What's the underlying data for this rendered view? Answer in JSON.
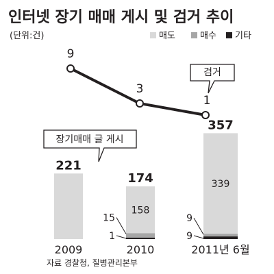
{
  "title": "인터넷 장기 매매 게시 및 검거 추이",
  "unit": "(단위:건)",
  "source": "자료 경찰청, 질병관리본부",
  "callouts": {
    "line": "검거",
    "bars": "장기매매 글 게시"
  },
  "colors": {
    "sell": "#d9d9d9",
    "buy": "#a6a6a6",
    "other": "#231f20",
    "line": "#231f20"
  },
  "chart_data": [
    {
      "type": "line",
      "name": "검거",
      "categories": [
        "2009",
        "2010",
        "2011년 6월"
      ],
      "values": [
        9,
        3,
        1
      ],
      "ylim": [
        0,
        10
      ]
    },
    {
      "type": "bar",
      "stacked": true,
      "categories": [
        "2009",
        "2010",
        "2011년 6월"
      ],
      "totals": [
        221,
        174,
        357
      ],
      "series": [
        {
          "name": "매도",
          "values": [
            221,
            158,
            339
          ],
          "labels": [
            "",
            "158",
            "339"
          ]
        },
        {
          "name": "매수",
          "values": [
            0,
            15,
            9
          ],
          "labels": [
            "",
            "15",
            "9"
          ]
        },
        {
          "name": "기타",
          "values": [
            0,
            1,
            9
          ],
          "labels": [
            "",
            "1",
            "9"
          ]
        }
      ],
      "legend_position": "top-right"
    }
  ]
}
